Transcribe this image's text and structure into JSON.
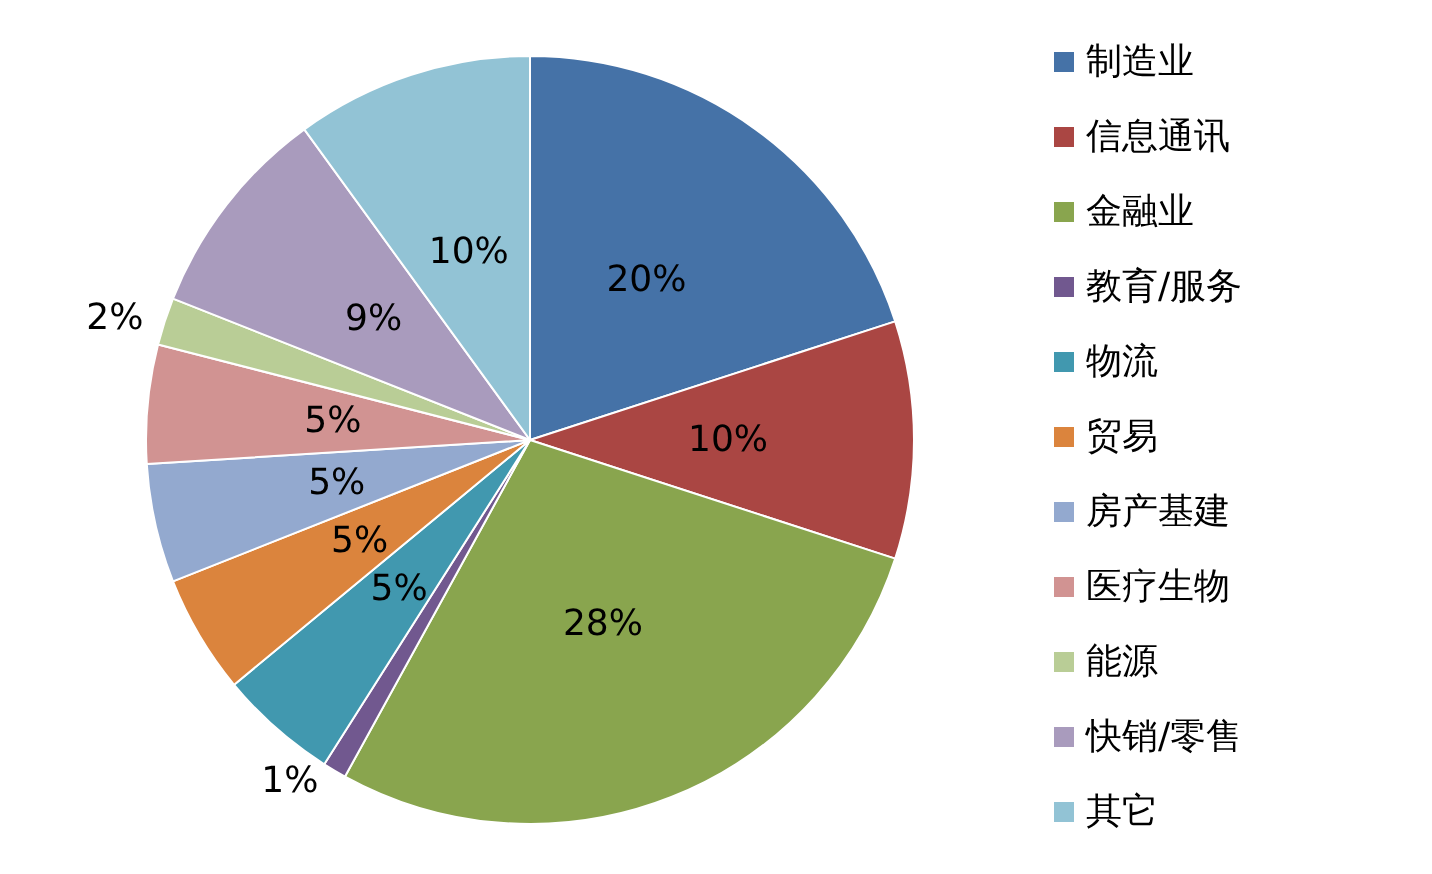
{
  "chart_data": {
    "type": "pie",
    "categories": [
      "制造业",
      "信息通讯",
      "金融业",
      "教育/服务",
      "物流",
      "贸易",
      "房产基建",
      "医疗生物",
      "能源",
      "快销/零售",
      "其它"
    ],
    "values": [
      20,
      10,
      28,
      1,
      5,
      5,
      5,
      5,
      2,
      9,
      10
    ],
    "colors": [
      "#4572a7",
      "#aa4643",
      "#89a54e",
      "#71588f",
      "#4198af",
      "#db843d",
      "#93a9cf",
      "#d19392",
      "#b9cd96",
      "#a99bbd",
      "#92c3d5"
    ],
    "value_labels": [
      "20%",
      "10%",
      "28%",
      "1%",
      "5%",
      "5%",
      "5%",
      "5%",
      "2%",
      "9%",
      "10%"
    ],
    "legend": "right"
  }
}
